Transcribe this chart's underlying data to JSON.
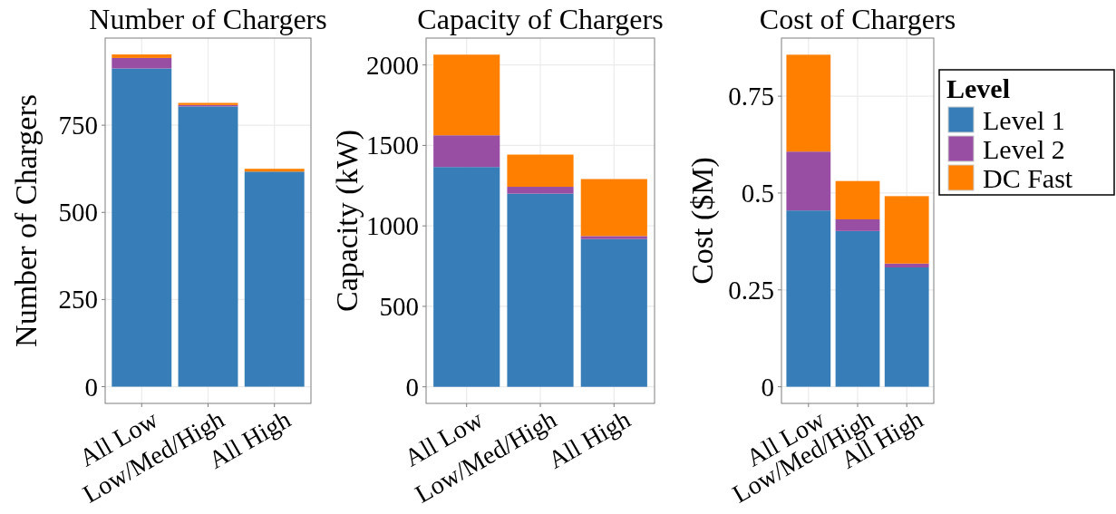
{
  "chart_data": [
    {
      "type": "bar",
      "title": "Number of Chargers",
      "ylabel": "Number of Chargers",
      "categories": [
        "All Low",
        "Low/Med/High",
        "All High"
      ],
      "stacked": true,
      "series": [
        {
          "color": "#377eb8",
          "values": [
            913,
            804,
            617
          ]
        },
        {
          "color": "#984ea3",
          "values": [
            30,
            4,
            0
          ]
        },
        {
          "color": "#ff7f00",
          "values": [
            10,
            6,
            8
          ]
        }
      ],
      "ylim": [
        -48,
        1000
      ],
      "yticks": [
        0,
        250,
        500,
        750
      ],
      "grid": true
    },
    {
      "type": "bar",
      "title": "Capacity of Chargers",
      "ylabel": "Capacity (kW)",
      "categories": [
        "All Low",
        "Low/Med/High",
        "All High"
      ],
      "stacked": true,
      "series": [
        {
          "color": "#377eb8",
          "values": [
            1366,
            1200,
            918
          ]
        },
        {
          "color": "#984ea3",
          "values": [
            197,
            43,
            19
          ]
        },
        {
          "color": "#ff7f00",
          "values": [
            501,
            200,
            354
          ]
        }
      ],
      "ylim": [
        -103,
        2167
      ],
      "yticks": [
        0,
        500,
        1000,
        1500,
        2000
      ],
      "grid": true
    },
    {
      "type": "bar",
      "title": "Cost of Chargers",
      "ylabel": "Cost ($M)",
      "legend_title": "Level",
      "categories": [
        "All Low",
        "Low/Med/High",
        "All High"
      ],
      "stacked": true,
      "series": [
        {
          "name": "Level 1",
          "color": "#377eb8",
          "values": [
            0.455,
            0.402,
            0.308
          ]
        },
        {
          "name": "Level 2",
          "color": "#984ea3",
          "values": [
            0.152,
            0.03,
            0.01
          ]
        },
        {
          "name": "DC Fast",
          "color": "#ff7f00",
          "values": [
            0.25,
            0.099,
            0.174
          ]
        }
      ],
      "ylim": [
        -0.043,
        0.9
      ],
      "yticks": [
        0,
        0.25,
        0.5,
        0.75
      ],
      "grid": true,
      "legend": "top right"
    }
  ]
}
